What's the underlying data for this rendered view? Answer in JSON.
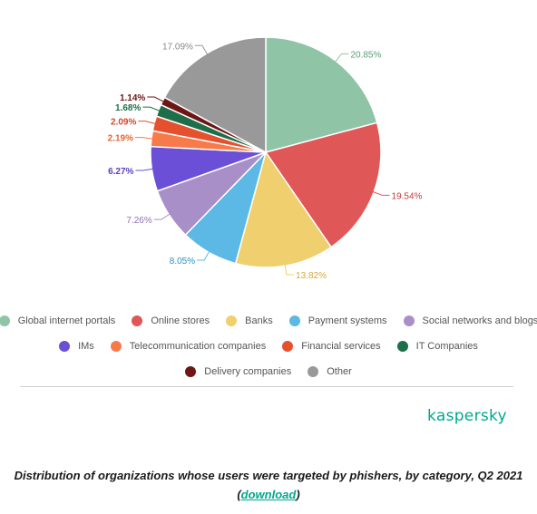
{
  "chart_data": {
    "type": "pie",
    "categories": [
      "Global internet portals",
      "Online stores",
      "Banks",
      "Payment systems",
      "Social networks and blogs",
      "IMs",
      "Telecommunication companies",
      "Financial services",
      "IT Companies",
      "Delivery companies",
      "Other"
    ],
    "values": [
      20.85,
      19.54,
      13.82,
      8.05,
      7.26,
      6.27,
      2.19,
      2.09,
      1.68,
      1.14,
      17.09
    ],
    "data_labels": [
      "20.85%",
      "19.54%",
      "13.82%",
      "8.05%",
      "7.26%",
      "6.27%",
      "2.19%",
      "2.09%",
      "1.68%",
      "1.14%",
      "17.09%"
    ],
    "colors": [
      "#8fc5a6",
      "#e05757",
      "#f0cf6e",
      "#5cb8e5",
      "#a98fc7",
      "#6b4fd6",
      "#f77b4a",
      "#e5512e",
      "#1e6e4a",
      "#6e1616",
      "#999999"
    ],
    "label_colors": [
      "#5a9e77",
      "#c33a3a",
      "#d6a83c",
      "#2e92c4",
      "#8f72b3",
      "#5a3fc0",
      "#e8632f",
      "#d6452a",
      "#1e6e4a",
      "#6e1616",
      "#888888"
    ],
    "legend_position": "bottom"
  },
  "brand": "kaspersky",
  "caption": {
    "text": "Distribution of organizations whose users were targeted by phishers, by category, Q2 2021",
    "link_text": "download"
  }
}
